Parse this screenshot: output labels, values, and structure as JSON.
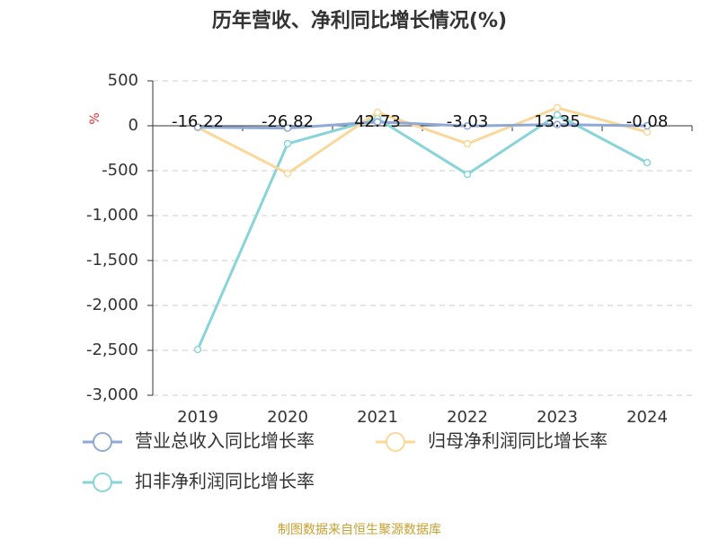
{
  "chart_data": {
    "type": "line",
    "title": "历年营收、净利同比增长情况(%)",
    "y_label": "%",
    "categories": [
      "2019",
      "2020",
      "2021",
      "2022",
      "2023",
      "2024"
    ],
    "series": [
      {
        "name": "营业总收入同比增长率",
        "color": "#8fa9d6",
        "values": [
          -16.22,
          -26.82,
          42.73,
          -3.03,
          13.35,
          -0.08
        ],
        "show_labels": true
      },
      {
        "name": "归母净利润同比增长率",
        "color": "#f9d89a",
        "values": [
          -20,
          -530,
          150,
          -200,
          200,
          -70
        ]
      },
      {
        "name": "扣非净利润同比增长率",
        "color": "#88d4d8",
        "values": [
          -2490,
          -200,
          80,
          -540,
          120,
          -410
        ]
      }
    ],
    "ylim": [
      -3000,
      500
    ],
    "yticks": [
      500,
      0,
      -500,
      {
        "value": -1000,
        "label": "-1,000"
      },
      {
        "value": -1500,
        "label": "-1,500"
      },
      {
        "value": -2000,
        "label": "-2,000"
      },
      {
        "value": -2500,
        "label": "-2,500"
      },
      {
        "value": -3000,
        "label": "-3,000"
      }
    ],
    "grid": true,
    "source": "制图数据来自恒生聚源数据库"
  }
}
